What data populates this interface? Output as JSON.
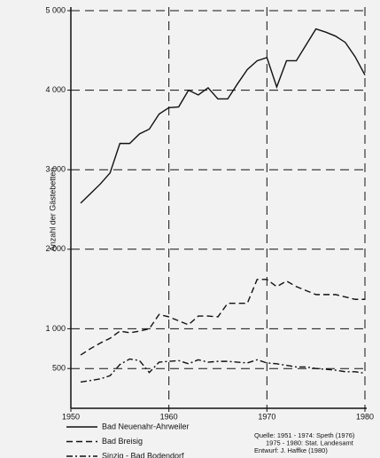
{
  "chart_data": {
    "type": "line",
    "y_label": "Anzahl der Gästebetten",
    "x": [
      1951,
      1952,
      1953,
      1954,
      1955,
      1956,
      1957,
      1958,
      1959,
      1960,
      1961,
      1962,
      1963,
      1964,
      1965,
      1966,
      1967,
      1968,
      1969,
      1970,
      1971,
      1972,
      1973,
      1974,
      1975,
      1976,
      1977,
      1978,
      1979,
      1980
    ],
    "series": [
      {
        "name": "Bad Neuenahr-Ahrweiler",
        "color": "#111111",
        "dash": "solid",
        "values": [
          2580,
          2700,
          2820,
          2960,
          3330,
          3330,
          3450,
          3510,
          3700,
          3780,
          3790,
          4000,
          3940,
          4030,
          3890,
          3890,
          4080,
          4260,
          4370,
          4410,
          4040,
          4370,
          4370,
          4570,
          4770,
          4730,
          4680,
          4600,
          4420,
          4190
        ]
      },
      {
        "name": "Bad Breisig",
        "color": "#111111",
        "dash": "dashed",
        "values": [
          670,
          750,
          820,
          880,
          970,
          950,
          970,
          1000,
          1180,
          1150,
          1100,
          1050,
          1160,
          1160,
          1150,
          1320,
          1320,
          1320,
          1620,
          1620,
          1530,
          1600,
          1530,
          1480,
          1430,
          1430,
          1430,
          1400,
          1370,
          1370
        ]
      },
      {
        "name": "Sinzig - Bad Bodendorf",
        "color": "#111111",
        "dash": "dashdot",
        "values": [
          330,
          350,
          370,
          410,
          550,
          620,
          600,
          450,
          580,
          590,
          600,
          560,
          610,
          580,
          590,
          590,
          580,
          570,
          610,
          570,
          560,
          540,
          520,
          520,
          500,
          490,
          480,
          460,
          460,
          440
        ]
      }
    ],
    "xlim": [
      1950,
      1980
    ],
    "xticks": [
      1950,
      1960,
      1970,
      1980
    ],
    "ylim": [
      0,
      5000
    ],
    "yticks": [
      500,
      {
        "value": 1000,
        "label": "1 000"
      },
      {
        "value": 2000,
        "label": "2 000"
      },
      {
        "value": 3000,
        "label": "3 000"
      },
      {
        "value": 4000,
        "label": "4 000"
      },
      {
        "value": 5000,
        "label": "5 000"
      }
    ],
    "grid": true,
    "source": [
      "Quelle: 1951 - 1974: Speth (1976)",
      "1975 - 1980: Stat. Landesamt",
      "Entwurf: J. Haffke (1980)"
    ]
  }
}
